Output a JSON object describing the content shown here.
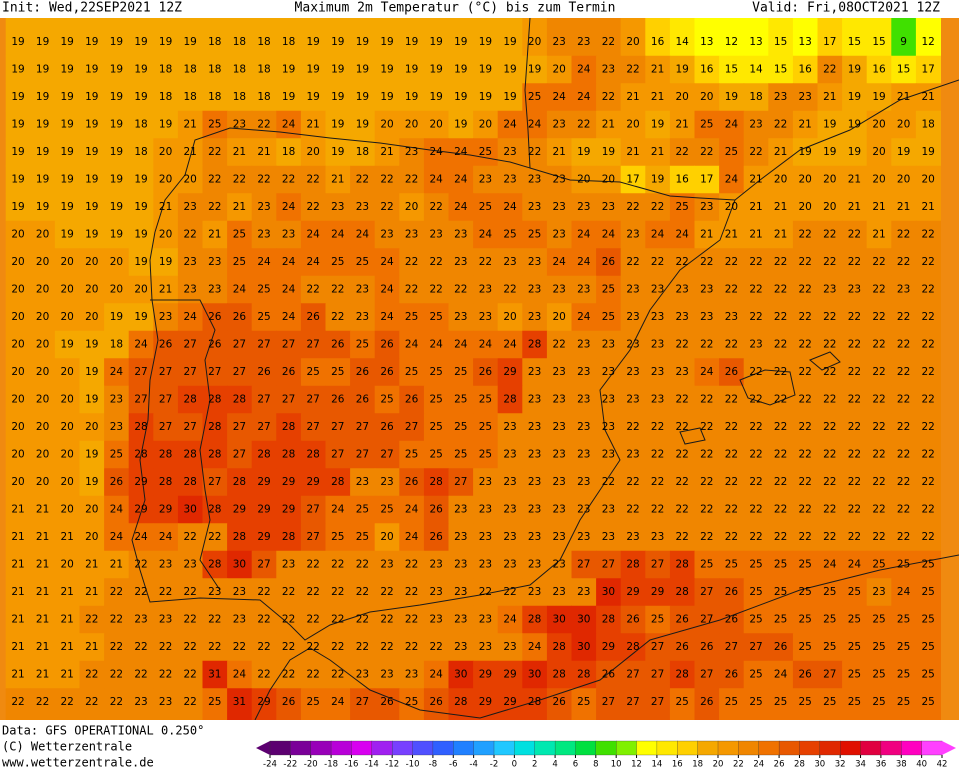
{
  "header": {
    "init": "Init: Wed,22SEP2021 12Z",
    "title": "Maximum 2m Temperatur (°C) bis zum Termin",
    "valid": "Valid: Fri,08OCT2021 12Z"
  },
  "footer": {
    "data": "Data: GFS OPERATIONAL 0.250°",
    "copyright": "(C) Wetterzentrale",
    "url": "www.wetterzentrale.de"
  },
  "colorbar": {
    "ticks": [
      -24,
      -22,
      -20,
      -18,
      -16,
      -14,
      -12,
      -10,
      -8,
      -6,
      -4,
      -2,
      0,
      2,
      4,
      6,
      8,
      10,
      12,
      14,
      16,
      18,
      20,
      22,
      24,
      26,
      28,
      30,
      32,
      34,
      36,
      38,
      40,
      42
    ],
    "colors": [
      "#5c0070",
      "#7a0098",
      "#9800b8",
      "#b800d8",
      "#d800f0",
      "#a020f0",
      "#7840ff",
      "#5050ff",
      "#3060ff",
      "#2080ff",
      "#20a0ff",
      "#20c8ff",
      "#00e0e0",
      "#00e8b0",
      "#00e880",
      "#00e040",
      "#40e000",
      "#80f000",
      "#ffff00",
      "#ffe800",
      "#ffd000",
      "#f5a800",
      "#f59800",
      "#f08600",
      "#f07200",
      "#e85800",
      "#e64000",
      "#e02800",
      "#e01000",
      "#e00040",
      "#f00080",
      "#ff00c0",
      "#ff40ff"
    ]
  },
  "grid": {
    "rows": [
      [
        19,
        19,
        19,
        19,
        19,
        19,
        19,
        19,
        18,
        18,
        18,
        18,
        19,
        19,
        19,
        19,
        19,
        19,
        19,
        19,
        19,
        20,
        23,
        23,
        22,
        20,
        16,
        14,
        13,
        12,
        13,
        15,
        13,
        17,
        15,
        15,
        9,
        12
      ],
      [
        19,
        19,
        19,
        19,
        19,
        19,
        18,
        18,
        18,
        18,
        18,
        19,
        19,
        19,
        19,
        19,
        19,
        19,
        19,
        19,
        19,
        19,
        20,
        24,
        23,
        22,
        21,
        19,
        16,
        15,
        14,
        15,
        16,
        22,
        19,
        16,
        15,
        17
      ],
      [
        19,
        19,
        19,
        19,
        19,
        19,
        18,
        18,
        18,
        18,
        18,
        19,
        19,
        19,
        19,
        19,
        19,
        19,
        19,
        19,
        19,
        25,
        24,
        24,
        22,
        21,
        21,
        20,
        20,
        19,
        18,
        23,
        23,
        21,
        19,
        19,
        21,
        21
      ],
      [
        19,
        19,
        19,
        19,
        19,
        18,
        19,
        21,
        25,
        23,
        22,
        24,
        21,
        19,
        19,
        20,
        20,
        20,
        19,
        20,
        24,
        24,
        23,
        22,
        21,
        20,
        19,
        21,
        25,
        24,
        23,
        22,
        21,
        19,
        19,
        20,
        20,
        18
      ],
      [
        19,
        19,
        19,
        19,
        19,
        18,
        20,
        21,
        22,
        21,
        21,
        18,
        20,
        19,
        18,
        21,
        23,
        24,
        24,
        25,
        23,
        22,
        21,
        19,
        19,
        21,
        21,
        22,
        22,
        25,
        22,
        21,
        19,
        19,
        19,
        20,
        19,
        19
      ],
      [
        19,
        19,
        19,
        19,
        19,
        19,
        20,
        20,
        22,
        22,
        22,
        22,
        22,
        21,
        22,
        22,
        22,
        24,
        24,
        23,
        23,
        23,
        23,
        20,
        20,
        17,
        19,
        16,
        17,
        24,
        21,
        20,
        20,
        20,
        21,
        20,
        20,
        20
      ],
      [
        19,
        19,
        19,
        19,
        19,
        19,
        21,
        23,
        22,
        21,
        23,
        24,
        22,
        23,
        23,
        22,
        20,
        22,
        24,
        25,
        24,
        23,
        23,
        23,
        23,
        22,
        22,
        25,
        23,
        20,
        21,
        21,
        20,
        20,
        21,
        21,
        21,
        21
      ],
      [
        20,
        20,
        19,
        19,
        19,
        19,
        20,
        22,
        21,
        25,
        23,
        23,
        24,
        24,
        24,
        23,
        23,
        23,
        23,
        24,
        25,
        25,
        23,
        24,
        24,
        23,
        24,
        24,
        21,
        21,
        21,
        21,
        22,
        22,
        22,
        21,
        22,
        22
      ],
      [
        20,
        20,
        20,
        20,
        20,
        19,
        19,
        23,
        23,
        25,
        24,
        24,
        24,
        25,
        25,
        24,
        22,
        22,
        23,
        22,
        23,
        23,
        24,
        24,
        26,
        22,
        22,
        22,
        22,
        22,
        22,
        22,
        22,
        22,
        22,
        22,
        22,
        22
      ],
      [
        20,
        20,
        20,
        20,
        20,
        20,
        21,
        23,
        23,
        24,
        25,
        24,
        22,
        22,
        23,
        24,
        22,
        22,
        22,
        23,
        22,
        23,
        23,
        23,
        25,
        23,
        23,
        23,
        23,
        22,
        22,
        22,
        22,
        23,
        23,
        22,
        23,
        22
      ],
      [
        20,
        20,
        20,
        20,
        19,
        19,
        23,
        24,
        26,
        26,
        25,
        24,
        26,
        22,
        23,
        24,
        25,
        25,
        23,
        23,
        20,
        23,
        20,
        24,
        25,
        23,
        23,
        23,
        23,
        23,
        22,
        22,
        22,
        22,
        22,
        22,
        22,
        22
      ],
      [
        20,
        20,
        19,
        19,
        18,
        24,
        26,
        27,
        26,
        27,
        27,
        27,
        27,
        26,
        25,
        26,
        24,
        24,
        24,
        24,
        24,
        28,
        22,
        23,
        23,
        23,
        23,
        22,
        22,
        22,
        23,
        22,
        22,
        22,
        22,
        22,
        22,
        22
      ],
      [
        20,
        20,
        20,
        19,
        24,
        27,
        27,
        27,
        27,
        27,
        26,
        26,
        25,
        25,
        26,
        26,
        25,
        25,
        25,
        26,
        29,
        23,
        23,
        23,
        23,
        23,
        23,
        23,
        24,
        26,
        22,
        22,
        22,
        22,
        22,
        22,
        22,
        22
      ],
      [
        20,
        20,
        20,
        19,
        23,
        27,
        27,
        28,
        28,
        28,
        27,
        27,
        27,
        26,
        26,
        25,
        26,
        25,
        25,
        25,
        28,
        23,
        23,
        23,
        23,
        23,
        23,
        22,
        22,
        22,
        22,
        22,
        22,
        22,
        22,
        22,
        22,
        22
      ],
      [
        20,
        20,
        20,
        20,
        23,
        28,
        27,
        27,
        28,
        27,
        27,
        28,
        27,
        27,
        27,
        26,
        27,
        25,
        25,
        25,
        23,
        23,
        23,
        23,
        23,
        22,
        22,
        22,
        22,
        22,
        22,
        22,
        22,
        22,
        22,
        22,
        22,
        22
      ],
      [
        20,
        20,
        20,
        19,
        25,
        28,
        28,
        28,
        28,
        27,
        28,
        28,
        28,
        27,
        27,
        27,
        25,
        25,
        25,
        25,
        23,
        23,
        23,
        23,
        23,
        23,
        22,
        22,
        22,
        22,
        22,
        22,
        22,
        22,
        22,
        22,
        22,
        22
      ],
      [
        20,
        20,
        20,
        19,
        26,
        29,
        28,
        28,
        27,
        28,
        29,
        29,
        29,
        28,
        23,
        23,
        26,
        28,
        27,
        23,
        23,
        23,
        23,
        23,
        22,
        22,
        22,
        22,
        22,
        22,
        22,
        22,
        22,
        22,
        22,
        22,
        22,
        22
      ],
      [
        21,
        21,
        20,
        20,
        24,
        29,
        29,
        30,
        28,
        29,
        29,
        29,
        27,
        24,
        25,
        25,
        24,
        26,
        23,
        23,
        23,
        23,
        23,
        23,
        23,
        22,
        22,
        22,
        22,
        22,
        22,
        22,
        22,
        22,
        22,
        22,
        22,
        22
      ],
      [
        21,
        21,
        21,
        20,
        24,
        24,
        24,
        22,
        22,
        28,
        29,
        28,
        27,
        25,
        25,
        20,
        24,
        26,
        23,
        23,
        23,
        23,
        23,
        23,
        23,
        23,
        23,
        22,
        22,
        22,
        22,
        22,
        22,
        22,
        22,
        22,
        22,
        22
      ],
      [
        21,
        21,
        20,
        21,
        21,
        22,
        23,
        23,
        28,
        30,
        27,
        23,
        22,
        22,
        22,
        23,
        22,
        23,
        23,
        23,
        23,
        23,
        23,
        27,
        27,
        28,
        27,
        28,
        25,
        25,
        25,
        25,
        25,
        24,
        24,
        25,
        25,
        25
      ],
      [
        21,
        21,
        21,
        21,
        22,
        22,
        22,
        22,
        23,
        23,
        22,
        22,
        22,
        22,
        22,
        22,
        22,
        23,
        23,
        22,
        22,
        23,
        23,
        23,
        30,
        29,
        29,
        28,
        27,
        26,
        25,
        25,
        25,
        25,
        25,
        23,
        24,
        25
      ],
      [
        21,
        21,
        21,
        22,
        22,
        23,
        23,
        22,
        22,
        23,
        22,
        22,
        22,
        22,
        22,
        22,
        22,
        23,
        23,
        23,
        24,
        28,
        30,
        30,
        28,
        26,
        25,
        26,
        27,
        26,
        25,
        25,
        25,
        25,
        25,
        25,
        25,
        25
      ],
      [
        21,
        21,
        21,
        21,
        22,
        22,
        22,
        22,
        22,
        22,
        22,
        22,
        22,
        22,
        22,
        22,
        22,
        22,
        23,
        23,
        23,
        24,
        28,
        30,
        29,
        28,
        27,
        26,
        26,
        27,
        27,
        26,
        25,
        25,
        25,
        25,
        25,
        25
      ],
      [
        21,
        21,
        21,
        22,
        22,
        22,
        22,
        22,
        31,
        24,
        22,
        22,
        22,
        22,
        23,
        23,
        23,
        24,
        30,
        29,
        29,
        30,
        28,
        28,
        26,
        27,
        27,
        28,
        27,
        26,
        25,
        24,
        26,
        27,
        25,
        25,
        25,
        25
      ],
      [
        22,
        22,
        22,
        22,
        22,
        23,
        23,
        22,
        25,
        31,
        29,
        26,
        25,
        24,
        27,
        26,
        25,
        26,
        28,
        29,
        29,
        28,
        26,
        25,
        27,
        27,
        27,
        25,
        26,
        25,
        25,
        25,
        25,
        25,
        25,
        25,
        25,
        25
      ]
    ]
  }
}
